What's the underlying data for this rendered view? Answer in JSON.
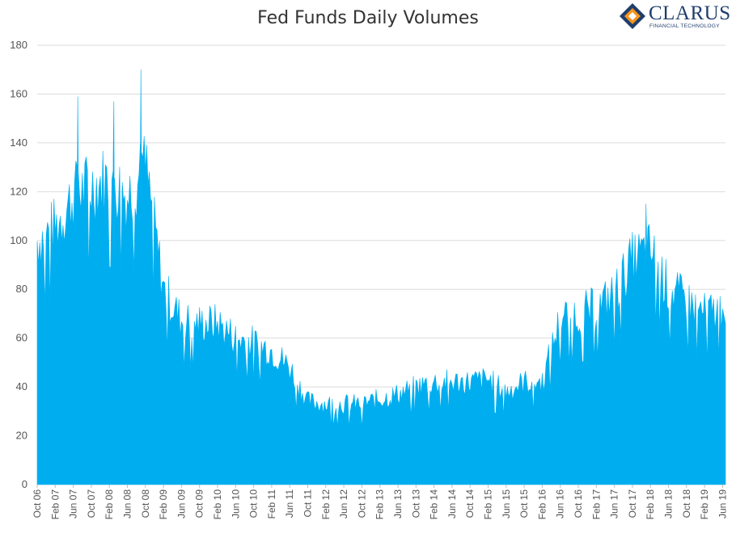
{
  "chart_data": {
    "type": "area",
    "title": "Fed Funds Daily Volumes",
    "xlabel": "",
    "ylabel": "",
    "ylim": [
      0,
      180
    ],
    "yticks": [
      0,
      20,
      40,
      60,
      80,
      100,
      120,
      140,
      160,
      180
    ],
    "grid": true,
    "legend": "none",
    "color": "#00aeef",
    "x_tick_labels": [
      "Oct 06",
      "Feb 07",
      "Jun 07",
      "Oct 07",
      "Feb 08",
      "Jun 08",
      "Oct 08",
      "Feb 09",
      "Jun 09",
      "Oct 09",
      "Feb 10",
      "Jun 10",
      "Oct 10",
      "Feb 11",
      "Jun 11",
      "Oct 11",
      "Feb 12",
      "Jun 12",
      "Oct 12",
      "Feb 13",
      "Jun 13",
      "Oct 13",
      "Feb 14",
      "Jun 14",
      "Oct 14",
      "Feb 15",
      "Jun 15",
      "Oct 15",
      "Feb 16",
      "Jun 16",
      "Oct 16",
      "Feb 17",
      "Jun 17",
      "Oct 17",
      "Feb 18",
      "Jun 18",
      "Oct 18",
      "Feb 19",
      "Jun 19"
    ],
    "series": [
      {
        "values_by_tick": [
          100,
          105,
          118,
          122,
          125,
          118,
          130,
          80,
          67,
          66,
          66,
          60,
          58,
          55,
          48,
          34,
          33,
          33,
          33,
          35,
          37,
          40,
          42,
          42,
          42,
          43,
          38,
          42,
          42,
          68,
          70,
          72,
          78,
          92,
          96,
          80,
          75,
          70,
          72
        ],
        "peak_values": [
          {
            "x": "Jul 07",
            "y": 159
          },
          {
            "x": "Mar 08",
            "y": 157
          },
          {
            "x": "Sep 08",
            "y": 170
          },
          {
            "x": "Jan 18",
            "y": 115
          }
        ]
      }
    ]
  },
  "logo": {
    "name": "CLARUS",
    "tagline": "FINANCIAL TECHNOLOGY"
  }
}
